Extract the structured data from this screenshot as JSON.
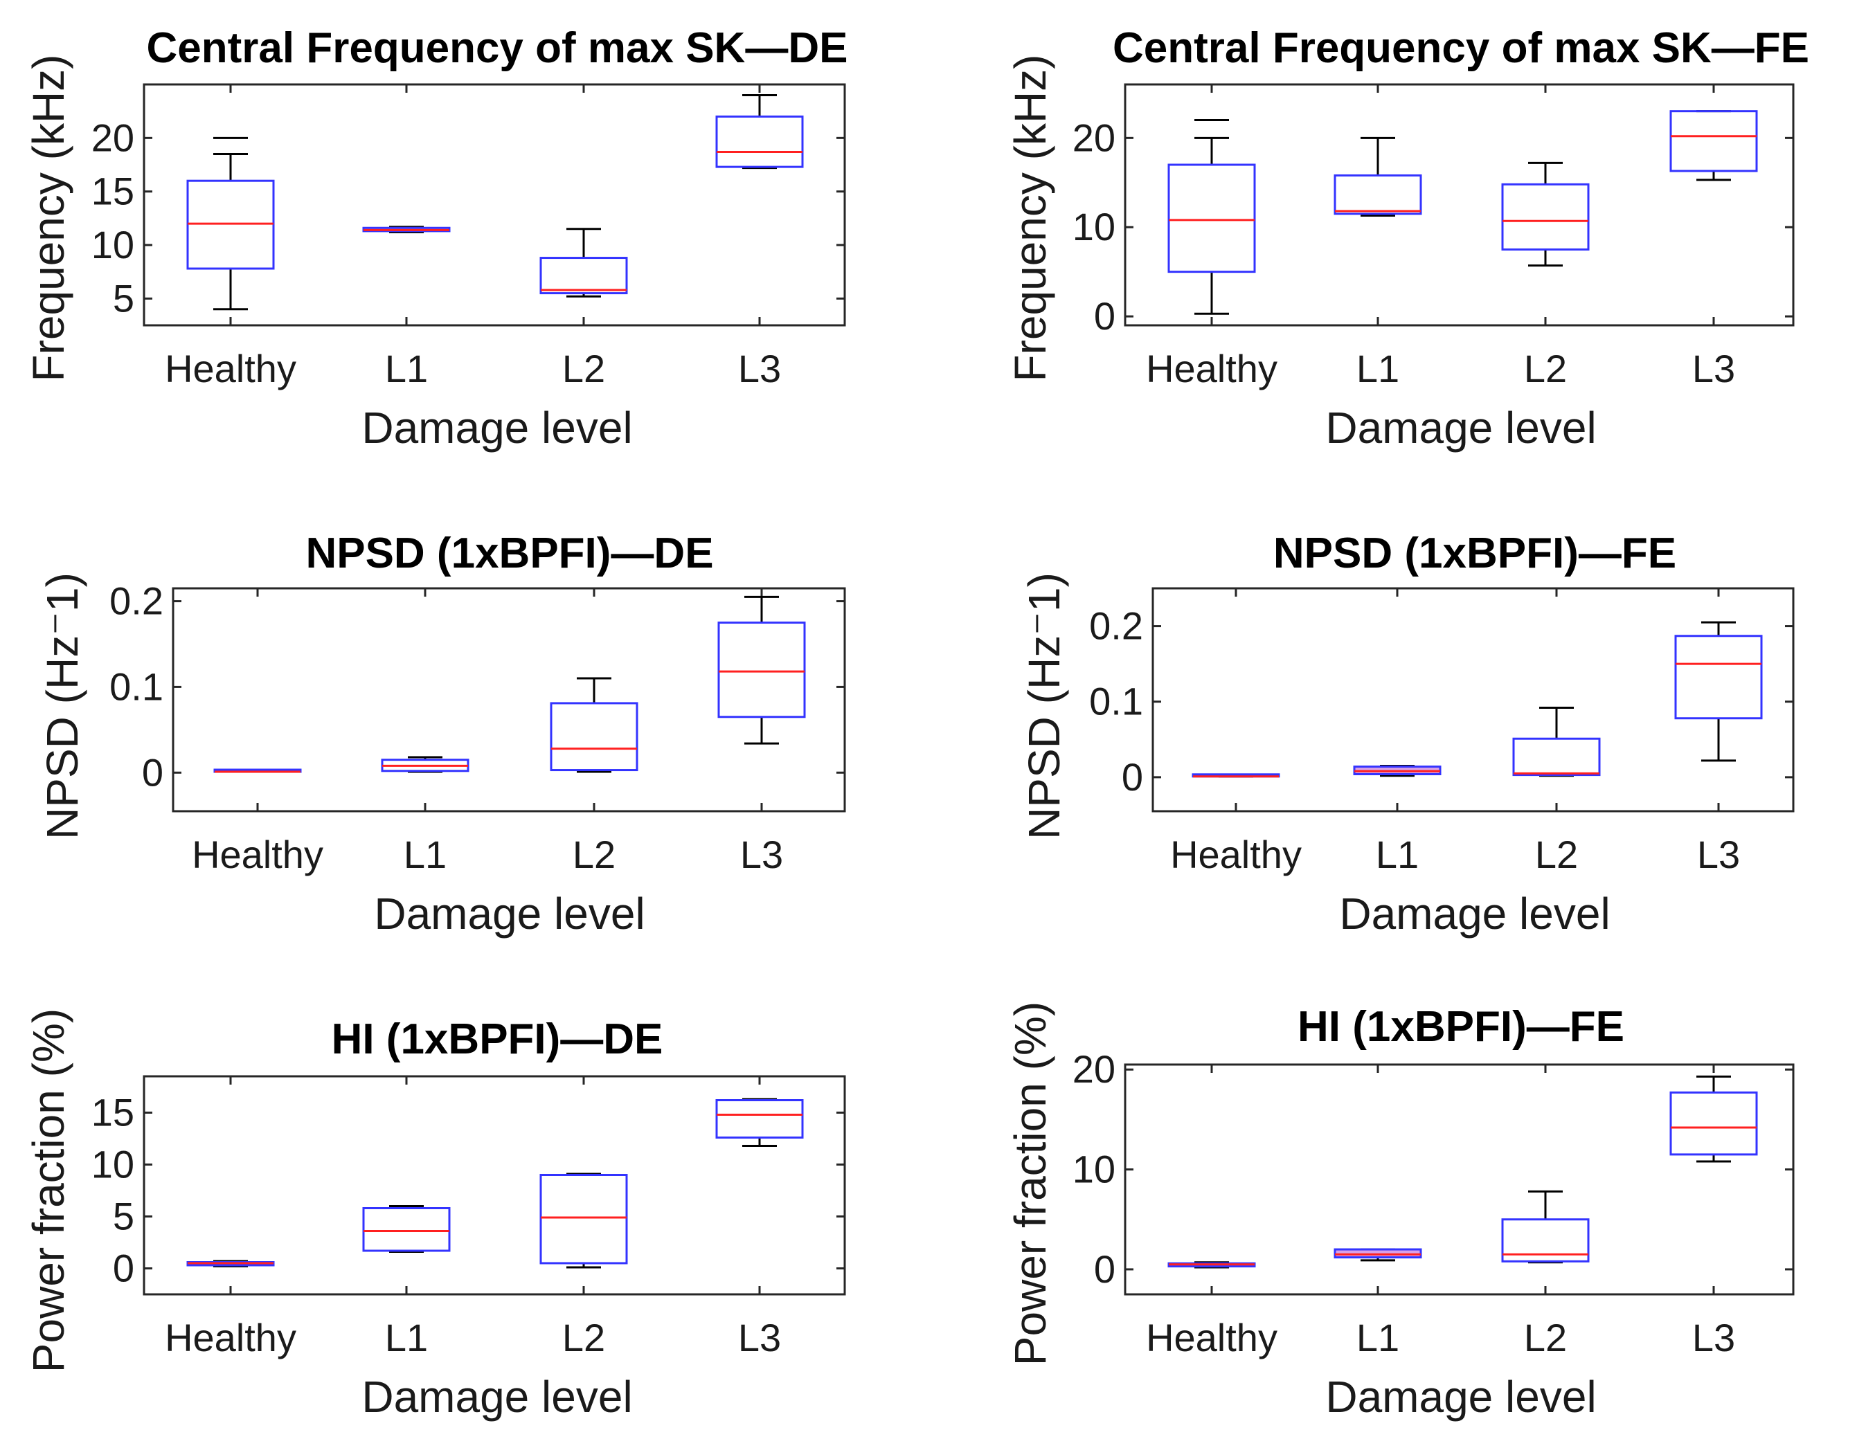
{
  "figure": {
    "background": "#ffffff",
    "box_color": "#3333ff",
    "median_color": "#ff2020",
    "whisker_color": "#000000"
  },
  "chart_data": [
    {
      "type": "boxplot",
      "title": "Central Frequency of max SK—DE",
      "xlabel": "Damage level",
      "ylabel": "Frequency (kHz)",
      "categories": [
        "Healthy",
        "L1",
        "L2",
        "L3"
      ],
      "ylim": [
        2.5,
        25
      ],
      "yticks": [
        5,
        10,
        15,
        20
      ],
      "boxes": [
        {
          "whisker_low": 4,
          "q1": 7.8,
          "median": 12,
          "q3": 16,
          "whisker_high": 18.5,
          "cap_high": 20
        },
        {
          "whisker_low": 11.2,
          "q1": 11.3,
          "median": 11.4,
          "q3": 11.6,
          "whisker_high": 11.7,
          "cap_high": null
        },
        {
          "whisker_low": 5.2,
          "q1": 5.5,
          "median": 5.8,
          "q3": 8.8,
          "whisker_high": 11.5,
          "cap_high": null
        },
        {
          "whisker_low": 17.2,
          "q1": 17.3,
          "median": 18.7,
          "q3": 22,
          "whisker_high": 24,
          "cap_high": null
        }
      ]
    },
    {
      "type": "boxplot",
      "title": "Central Frequency of max SK—FE",
      "xlabel": "Damage level",
      "ylabel": "Frequency (kHz)",
      "categories": [
        "Healthy",
        "L1",
        "L2",
        "L3"
      ],
      "ylim": [
        -1,
        26
      ],
      "yticks": [
        0,
        10,
        20
      ],
      "boxes": [
        {
          "whisker_low": 0.3,
          "q1": 5,
          "median": 10.8,
          "q3": 17,
          "whisker_high": 20,
          "cap_high": 22
        },
        {
          "whisker_low": 11.3,
          "q1": 11.5,
          "median": 11.8,
          "q3": 15.8,
          "whisker_high": 20,
          "cap_high": null
        },
        {
          "whisker_low": 5.7,
          "q1": 7.5,
          "median": 10.7,
          "q3": 14.8,
          "whisker_high": 17.2,
          "cap_high": null
        },
        {
          "whisker_low": 15.3,
          "q1": 16.3,
          "median": 20.2,
          "q3": 23,
          "whisker_high": 23,
          "cap_high": null
        }
      ]
    },
    {
      "type": "boxplot",
      "title": "NPSD (1xBPFI)—DE",
      "xlabel": "Damage level",
      "ylabel": "NPSD (Hz⁻1)",
      "categories": [
        "Healthy",
        "L1",
        "L2",
        "L3"
      ],
      "ylim": [
        -0.045,
        0.215
      ],
      "yticks": [
        0,
        0.1,
        0.2
      ],
      "ytick_labels": [
        "0",
        "0.1",
        "0.2"
      ],
      "boxes": [
        {
          "whisker_low": 0.001,
          "q1": 0.001,
          "median": 0.001,
          "q3": 0.001,
          "whisker_high": 0.001,
          "cap_high": null
        },
        {
          "whisker_low": 0.001,
          "q1": 0.002,
          "median": 0.008,
          "q3": 0.015,
          "whisker_high": 0.018,
          "cap_high": null
        },
        {
          "whisker_low": 0.001,
          "q1": 0.003,
          "median": 0.028,
          "q3": 0.081,
          "whisker_high": 0.11,
          "cap_high": null
        },
        {
          "whisker_low": 0.034,
          "q1": 0.065,
          "median": 0.118,
          "q3": 0.175,
          "whisker_high": 0.205,
          "cap_high": null
        }
      ]
    },
    {
      "type": "boxplot",
      "title": "NPSD (1xBPFI)—FE",
      "xlabel": "Damage level",
      "ylabel": "NPSD (Hz⁻1)",
      "categories": [
        "Healthy",
        "L1",
        "L2",
        "L3"
      ],
      "ylim": [
        -0.045,
        0.25
      ],
      "yticks": [
        0,
        0.1,
        0.2
      ],
      "ytick_labels": [
        "0",
        "0.1",
        "0.2"
      ],
      "boxes": [
        {
          "whisker_low": 0.001,
          "q1": 0.001,
          "median": 0.001,
          "q3": 0.001,
          "whisker_high": 0.001,
          "cap_high": null
        },
        {
          "whisker_low": 0.002,
          "q1": 0.004,
          "median": 0.008,
          "q3": 0.014,
          "whisker_high": 0.015,
          "cap_high": null
        },
        {
          "whisker_low": 0.002,
          "q1": 0.003,
          "median": 0.005,
          "q3": 0.051,
          "whisker_high": 0.092,
          "cap_high": null
        },
        {
          "whisker_low": 0.022,
          "q1": 0.078,
          "median": 0.15,
          "q3": 0.187,
          "whisker_high": 0.205,
          "cap_high": null
        }
      ]
    },
    {
      "type": "boxplot",
      "title": "HI (1xBPFI)—DE",
      "xlabel": "Damage level",
      "ylabel": "Power fraction (%)",
      "categories": [
        "Healthy",
        "L1",
        "L2",
        "L3"
      ],
      "ylim": [
        -2.5,
        18.5
      ],
      "yticks": [
        0,
        5,
        10,
        15
      ],
      "boxes": [
        {
          "whisker_low": 0.2,
          "q1": 0.3,
          "median": 0.5,
          "q3": 0.6,
          "whisker_high": 0.7,
          "cap_high": null
        },
        {
          "whisker_low": 1.6,
          "q1": 1.7,
          "median": 3.6,
          "q3": 5.8,
          "whisker_high": 6,
          "cap_high": null
        },
        {
          "whisker_low": 0.1,
          "q1": 0.5,
          "median": 4.9,
          "q3": 9,
          "whisker_high": 9.1,
          "cap_high": null
        },
        {
          "whisker_low": 11.8,
          "q1": 12.6,
          "median": 14.8,
          "q3": 16.2,
          "whisker_high": 16.3,
          "cap_high": null
        }
      ]
    },
    {
      "type": "boxplot",
      "title": "HI (1xBPFI)—FE",
      "xlabel": "Damage level",
      "ylabel": "Power fraction (%)",
      "categories": [
        "Healthy",
        "L1",
        "L2",
        "L3"
      ],
      "ylim": [
        -2.5,
        20.5
      ],
      "yticks": [
        0,
        10,
        20
      ],
      "boxes": [
        {
          "whisker_low": 0.2,
          "q1": 0.3,
          "median": 0.5,
          "q3": 0.6,
          "whisker_high": 0.7,
          "cap_high": null
        },
        {
          "whisker_low": 0.9,
          "q1": 1.2,
          "median": 1.5,
          "q3": 2,
          "whisker_high": 2,
          "cap_high": null
        },
        {
          "whisker_low": 0.7,
          "q1": 0.8,
          "median": 1.5,
          "q3": 5,
          "whisker_high": 7.8,
          "cap_high": null
        },
        {
          "whisker_low": 10.8,
          "q1": 11.5,
          "median": 14.2,
          "q3": 17.7,
          "whisker_high": 19.3,
          "cap_high": null
        }
      ]
    }
  ]
}
